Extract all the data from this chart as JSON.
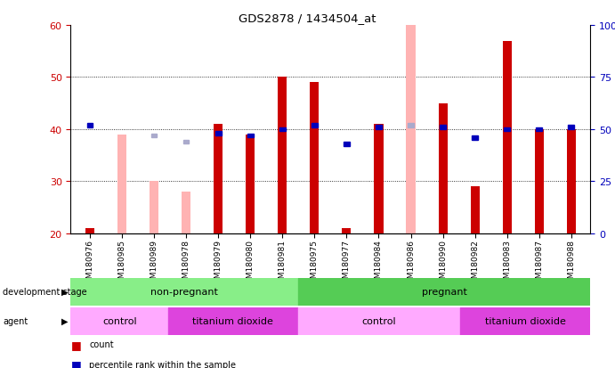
{
  "title": "GDS2878 / 1434504_at",
  "samples": [
    "GSM180976",
    "GSM180985",
    "GSM180989",
    "GSM180978",
    "GSM180979",
    "GSM180980",
    "GSM180981",
    "GSM180975",
    "GSM180977",
    "GSM180984",
    "GSM180986",
    "GSM180990",
    "GSM180982",
    "GSM180983",
    "GSM180987",
    "GSM180988"
  ],
  "count_values": [
    21,
    null,
    null,
    null,
    41,
    39,
    50,
    49,
    21,
    41,
    null,
    45,
    29,
    57,
    40,
    40
  ],
  "count_absent": [
    null,
    39,
    30,
    28,
    null,
    null,
    null,
    null,
    null,
    null,
    60,
    null,
    null,
    null,
    null,
    null
  ],
  "rank_values_pct": [
    52,
    null,
    null,
    null,
    48,
    47,
    50,
    52,
    43,
    51,
    null,
    51,
    46,
    50,
    50,
    51
  ],
  "rank_absent_pct": [
    null,
    null,
    47,
    44,
    null,
    null,
    null,
    null,
    null,
    null,
    52,
    null,
    null,
    null,
    null,
    null
  ],
  "ylim": [
    20,
    60
  ],
  "y2lim": [
    0,
    100
  ],
  "yticks": [
    20,
    30,
    40,
    50,
    60
  ],
  "y2ticks": [
    0,
    25,
    50,
    75,
    100
  ],
  "count_color": "#cc0000",
  "count_absent_color": "#ffb3b3",
  "rank_color": "#0000bb",
  "rank_absent_color": "#aaaacc",
  "dev_stage_groups": [
    {
      "label": "non-pregnant",
      "start": 0,
      "end": 7,
      "color": "#88ee88"
    },
    {
      "label": "pregnant",
      "start": 7,
      "end": 16,
      "color": "#55cc55"
    }
  ],
  "agent_groups": [
    {
      "label": "control",
      "start": 0,
      "end": 3,
      "color": "#ffaaff"
    },
    {
      "label": "titanium dioxide",
      "start": 3,
      "end": 7,
      "color": "#dd44dd"
    },
    {
      "label": "control",
      "start": 7,
      "end": 12,
      "color": "#ffaaff"
    },
    {
      "label": "titanium dioxide",
      "start": 12,
      "end": 16,
      "color": "#dd44dd"
    }
  ]
}
